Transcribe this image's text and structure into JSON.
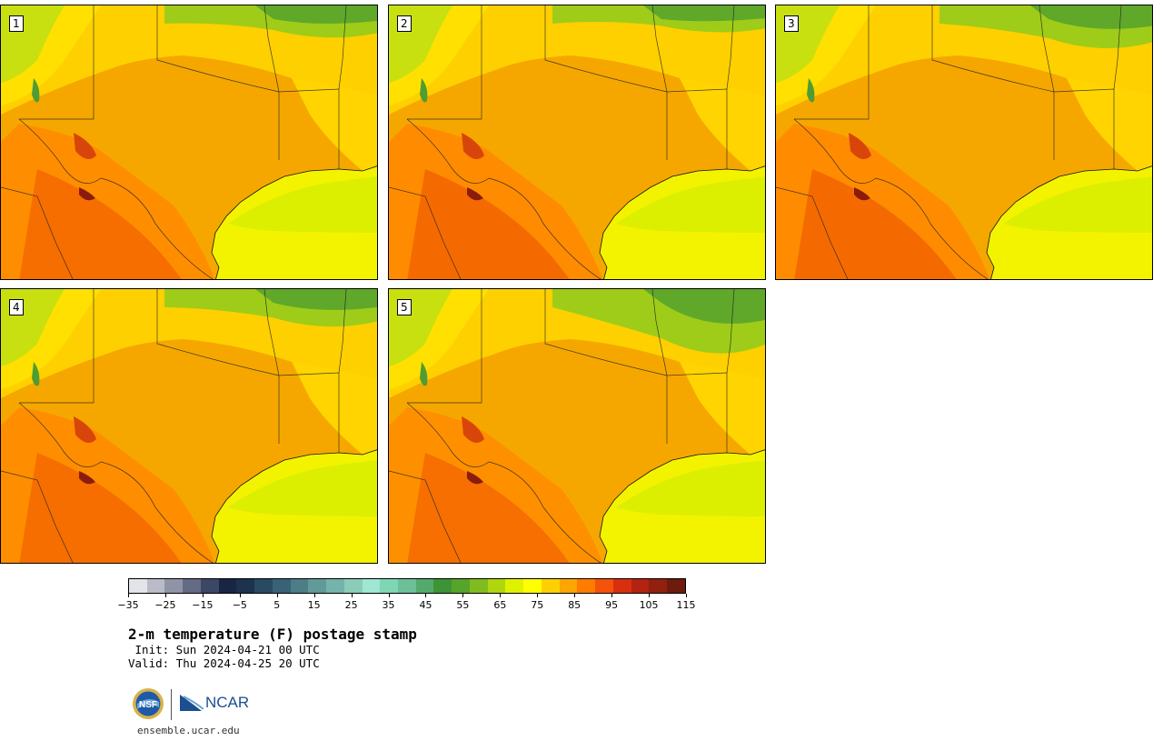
{
  "colors": {
    "gulf": "#f3f300",
    "land_base": "#f5a200",
    "panel_border": "#000000"
  },
  "panels": [
    {
      "label": "1"
    },
    {
      "label": "2"
    },
    {
      "label": "3"
    },
    {
      "label": "4"
    },
    {
      "label": "5"
    }
  ],
  "colorbar": {
    "colors": [
      "#e2e4ea",
      "#b9bcc8",
      "#8f94a6",
      "#646b84",
      "#3c4665",
      "#182644",
      "#1d324f",
      "#284a62",
      "#386276",
      "#4d7d86",
      "#619a98",
      "#74b4ac",
      "#89cdb9",
      "#9fe6d3",
      "#7fd6b4",
      "#6cc098",
      "#52aa6c",
      "#3d9434",
      "#56a42a",
      "#80bb1f",
      "#b0d60e",
      "#def200",
      "#ffff00",
      "#ffd000",
      "#ffa500",
      "#ff7c00",
      "#f5520b",
      "#d8300e",
      "#b32310",
      "#92200f",
      "#6e1a0c"
    ],
    "tick_labels": [
      "−35",
      "−25",
      "−15",
      "−5",
      "5",
      "15",
      "25",
      "35",
      "45",
      "55",
      "65",
      "75",
      "85",
      "95",
      "105",
      "115"
    ]
  },
  "title": "2-m temperature (F) postage stamp",
  "init": " Init: Sun 2024-04-21 00 UTC",
  "valid": "Valid: Thu 2024-04-25 20 UTC",
  "url": "ensemble.ucar.edu",
  "logos": {
    "nsf": "NSF",
    "ncar": "NCAR"
  }
}
